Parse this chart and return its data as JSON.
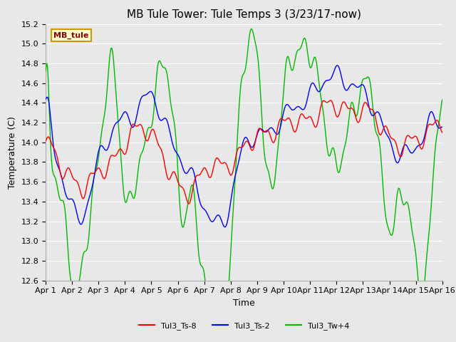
{
  "title": "MB Tule Tower: Tule Temps 3 (3/23/17-now)",
  "xlabel": "Time",
  "ylabel": "Temperature (C)",
  "ylim": [
    12.6,
    15.2
  ],
  "xlim": [
    0,
    15
  ],
  "xtick_labels": [
    "Apr 1",
    "Apr 2",
    "Apr 3",
    "Apr 4",
    "Apr 5",
    "Apr 6",
    "Apr 7",
    "Apr 8",
    "Apr 9",
    "Apr 10",
    "Apr 11",
    "Apr 12",
    "Apr 13",
    "Apr 14",
    "Apr 15",
    "Apr 16"
  ],
  "ytick_vals": [
    12.6,
    12.8,
    13.0,
    13.2,
    13.4,
    13.6,
    13.8,
    14.0,
    14.2,
    14.4,
    14.6,
    14.8,
    15.0,
    15.2
  ],
  "line_red_color": "#ff0000",
  "line_blue_color": "#0000ff",
  "line_green_color": "#00bb00",
  "legend_labels": [
    "Tul3_Ts-8",
    "Tul3_Ts-2",
    "Tul3_Tw+4"
  ],
  "legend_box_label": "MB_tule",
  "legend_box_color": "#ffffcc",
  "legend_box_edge": "#cc9900",
  "legend_box_text": "#880000",
  "bg_color": "#e8e8e8",
  "title_fontsize": 11,
  "axis_fontsize": 9,
  "tick_fontsize": 8,
  "linewidth": 1.0,
  "figwidth": 6.4,
  "figheight": 4.8,
  "dpi": 100
}
